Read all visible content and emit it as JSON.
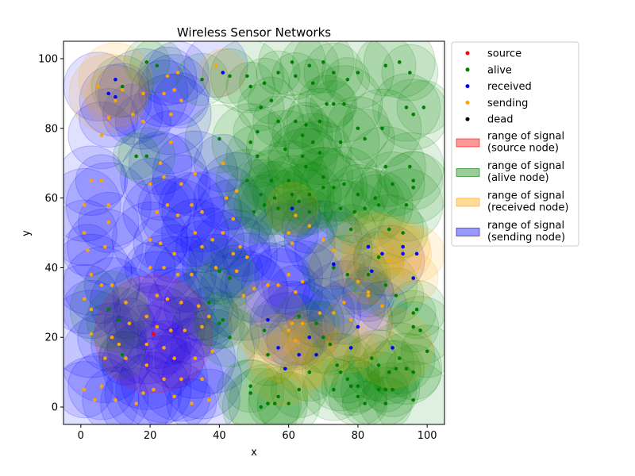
{
  "chart_data": {
    "type": "scatter",
    "title": "Wireless Sensor Networks",
    "xlabel": "x",
    "ylabel": "y",
    "xlim": [
      -5,
      105
    ],
    "ylim": [
      -5,
      105
    ],
    "xticks": [
      "0",
      "20",
      "40",
      "60",
      "80",
      "100"
    ],
    "yticks": [
      "0",
      "20",
      "40",
      "60",
      "80",
      "100"
    ],
    "grid": false,
    "legend_position": "outside-right",
    "colors": {
      "source": "#ff0000",
      "alive": "#008000",
      "received": "#0000ff",
      "sending": "#ffa500",
      "dead": "#000000",
      "range_source": "#ff0000",
      "range_alive": "#008000",
      "range_received": "#ffa500",
      "range_sending": "#0000ff"
    },
    "legend": [
      {
        "key": "source",
        "kind": "point",
        "label": "source"
      },
      {
        "key": "alive",
        "kind": "point",
        "label": "alive"
      },
      {
        "key": "received",
        "kind": "point",
        "label": "received"
      },
      {
        "key": "sending",
        "kind": "point",
        "label": "sending"
      },
      {
        "key": "dead",
        "kind": "point",
        "label": "dead"
      },
      {
        "key": "range_source",
        "kind": "patch",
        "label": "range of signal\n(source node)"
      },
      {
        "key": "range_alive",
        "kind": "patch",
        "label": "range of signal\n(alive node)"
      },
      {
        "key": "range_received",
        "kind": "patch",
        "label": "range of signal\n(received node)"
      },
      {
        "key": "range_sending",
        "kind": "patch",
        "label": "range of signal\n(sending node)"
      }
    ],
    "series": [
      {
        "name": "source",
        "points": [
          [
            21,
            21
          ]
        ]
      },
      {
        "name": "received",
        "points": [
          [
            8,
            90
          ],
          [
            10,
            94
          ],
          [
            10,
            89
          ],
          [
            41,
            96
          ],
          [
            61,
            57
          ],
          [
            73,
            41
          ],
          [
            83,
            46
          ],
          [
            84,
            39
          ],
          [
            87,
            44
          ],
          [
            93,
            46
          ],
          [
            93,
            44
          ],
          [
            97,
            44
          ],
          [
            96,
            37
          ],
          [
            54,
            25
          ],
          [
            57,
            17
          ],
          [
            59,
            11
          ],
          [
            63,
            15
          ],
          [
            66,
            20
          ],
          [
            68,
            15
          ],
          [
            78,
            17
          ],
          [
            80,
            23
          ],
          [
            90,
            17
          ]
        ]
      },
      {
        "name": "alive",
        "points": [
          [
            19,
            99
          ],
          [
            22,
            98
          ],
          [
            12,
            92
          ],
          [
            16,
            72
          ],
          [
            19,
            72
          ],
          [
            35,
            94
          ],
          [
            43,
            95
          ],
          [
            48,
            95
          ],
          [
            49,
            92
          ],
          [
            53,
            93
          ],
          [
            57,
            96
          ],
          [
            61,
            99
          ],
          [
            62,
            95
          ],
          [
            66,
            98
          ],
          [
            67,
            93
          ],
          [
            70,
            99
          ],
          [
            73,
            96
          ],
          [
            77,
            94
          ],
          [
            80,
            96
          ],
          [
            88,
            98
          ],
          [
            92,
            99
          ],
          [
            95,
            96
          ],
          [
            87,
            80
          ],
          [
            96,
            84
          ],
          [
            94,
            86
          ],
          [
            99,
            86
          ],
          [
            71,
            87
          ],
          [
            73,
            87
          ],
          [
            76,
            87
          ],
          [
            55,
            88
          ],
          [
            52,
            86
          ],
          [
            57,
            82
          ],
          [
            62,
            82
          ],
          [
            65,
            81
          ],
          [
            69,
            82
          ],
          [
            64,
            78
          ],
          [
            67,
            76
          ],
          [
            69,
            73
          ],
          [
            75,
            76
          ],
          [
            80,
            80
          ],
          [
            82,
            77
          ],
          [
            51,
            79
          ],
          [
            49,
            76
          ],
          [
            40,
            77
          ],
          [
            51,
            72
          ],
          [
            59,
            74
          ],
          [
            64,
            72
          ],
          [
            55,
            65
          ],
          [
            60,
            65
          ],
          [
            65,
            69
          ],
          [
            70,
            66
          ],
          [
            48,
            65
          ],
          [
            52,
            61
          ],
          [
            56,
            60
          ],
          [
            61,
            61
          ],
          [
            66,
            61
          ],
          [
            70,
            63
          ],
          [
            73,
            63
          ],
          [
            76,
            64
          ],
          [
            80,
            61
          ],
          [
            85,
            60
          ],
          [
            88,
            69
          ],
          [
            90,
            64
          ],
          [
            95,
            69
          ],
          [
            96,
            65
          ],
          [
            96,
            63
          ],
          [
            94,
            58
          ],
          [
            50,
            56
          ],
          [
            53,
            58
          ],
          [
            57,
            57
          ],
          [
            63,
            59
          ],
          [
            66,
            56
          ],
          [
            75,
            57
          ],
          [
            79,
            56
          ],
          [
            82,
            57
          ],
          [
            86,
            58
          ],
          [
            78,
            51
          ],
          [
            89,
            51
          ],
          [
            93,
            50
          ],
          [
            86,
            43
          ],
          [
            88,
            35
          ],
          [
            91,
            32
          ],
          [
            83,
            38
          ],
          [
            77,
            38
          ],
          [
            73,
            40
          ],
          [
            96,
            27
          ],
          [
            97,
            28
          ],
          [
            96,
            23
          ],
          [
            98,
            22
          ],
          [
            100,
            16
          ],
          [
            94,
            11
          ],
          [
            96,
            10
          ],
          [
            96,
            2
          ],
          [
            40,
            39
          ],
          [
            43,
            37
          ],
          [
            37,
            30
          ],
          [
            40,
            24
          ],
          [
            41,
            25
          ],
          [
            43,
            20
          ],
          [
            8,
            28
          ],
          [
            11,
            25
          ],
          [
            12,
            15
          ],
          [
            53,
            22
          ],
          [
            54,
            15
          ],
          [
            56,
            1
          ],
          [
            57,
            3
          ],
          [
            60,
            1
          ],
          [
            63,
            5
          ],
          [
            63,
            26
          ],
          [
            68,
            24
          ],
          [
            70,
            20
          ],
          [
            72,
            18
          ],
          [
            74,
            12
          ],
          [
            75,
            10
          ],
          [
            77,
            8
          ],
          [
            78,
            6
          ],
          [
            80,
            6
          ],
          [
            80,
            3
          ],
          [
            82,
            1
          ],
          [
            84,
            14
          ],
          [
            86,
            12
          ],
          [
            86,
            5
          ],
          [
            88,
            5
          ],
          [
            89,
            10
          ],
          [
            90,
            5
          ],
          [
            91,
            11
          ],
          [
            88,
            1
          ],
          [
            92,
            14
          ],
          [
            73,
            5
          ],
          [
            49,
            6
          ],
          [
            49,
            4
          ],
          [
            52,
            0
          ],
          [
            54,
            1
          ],
          [
            66,
            10
          ]
        ]
      },
      {
        "name": "sending",
        "points": [
          [
            5,
            92
          ],
          [
            10,
            88
          ],
          [
            12,
            91
          ],
          [
            8,
            83
          ],
          [
            6,
            78
          ],
          [
            3,
            65
          ],
          [
            6,
            65
          ],
          [
            8,
            58
          ],
          [
            1,
            58
          ],
          [
            1,
            50
          ],
          [
            8,
            53
          ],
          [
            3,
            38
          ],
          [
            7,
            46
          ],
          [
            2,
            45
          ],
          [
            1,
            31
          ],
          [
            3,
            28
          ],
          [
            6,
            35
          ],
          [
            9,
            35
          ],
          [
            13,
            30
          ],
          [
            9,
            20
          ],
          [
            11,
            18
          ],
          [
            14,
            24
          ],
          [
            3,
            21
          ],
          [
            7,
            14
          ],
          [
            13,
            14
          ],
          [
            6,
            6
          ],
          [
            4,
            2
          ],
          [
            1,
            5
          ],
          [
            10,
            2
          ],
          [
            16,
            1
          ],
          [
            18,
            4
          ],
          [
            15,
            84
          ],
          [
            18,
            82
          ],
          [
            18,
            90
          ],
          [
            24,
            90
          ],
          [
            25,
            95
          ],
          [
            27,
            91
          ],
          [
            28,
            96
          ],
          [
            29,
            88
          ],
          [
            26,
            84
          ],
          [
            26,
            76
          ],
          [
            23,
            70
          ],
          [
            20,
            64
          ],
          [
            24,
            66
          ],
          [
            29,
            64
          ],
          [
            33,
            67
          ],
          [
            22,
            56
          ],
          [
            25,
            58
          ],
          [
            28,
            55
          ],
          [
            32,
            58
          ],
          [
            35,
            56
          ],
          [
            20,
            48
          ],
          [
            23,
            47
          ],
          [
            27,
            44
          ],
          [
            33,
            50
          ],
          [
            35,
            46
          ],
          [
            20,
            40
          ],
          [
            24,
            40
          ],
          [
            28,
            38
          ],
          [
            32,
            38
          ],
          [
            22,
            32
          ],
          [
            25,
            31
          ],
          [
            29,
            30
          ],
          [
            34,
            29
          ],
          [
            19,
            26
          ],
          [
            22,
            23
          ],
          [
            26,
            22
          ],
          [
            30,
            22
          ],
          [
            35,
            23
          ],
          [
            37,
            26
          ],
          [
            19,
            18
          ],
          [
            24,
            17
          ],
          [
            27,
            14
          ],
          [
            33,
            14
          ],
          [
            38,
            16
          ],
          [
            19,
            12
          ],
          [
            24,
            8
          ],
          [
            29,
            8
          ],
          [
            35,
            8
          ],
          [
            21,
            5
          ],
          [
            27,
            3
          ],
          [
            32,
            1
          ],
          [
            37,
            2
          ],
          [
            39,
            98
          ],
          [
            41,
            70
          ],
          [
            42,
            60
          ],
          [
            45,
            62
          ],
          [
            44,
            54
          ],
          [
            46,
            46
          ],
          [
            44,
            44
          ],
          [
            48,
            43
          ],
          [
            38,
            48
          ],
          [
            41,
            50
          ],
          [
            39,
            40
          ],
          [
            45,
            39
          ],
          [
            47,
            32
          ],
          [
            50,
            34
          ],
          [
            54,
            35
          ],
          [
            57,
            35
          ],
          [
            60,
            38
          ],
          [
            62,
            33
          ],
          [
            64,
            36
          ],
          [
            61,
            47
          ],
          [
            60,
            50
          ],
          [
            62,
            55
          ],
          [
            66,
            52
          ],
          [
            70,
            48
          ],
          [
            73,
            45
          ],
          [
            60,
            22
          ],
          [
            61,
            24
          ],
          [
            62,
            19
          ],
          [
            64,
            24
          ],
          [
            80,
            36
          ],
          [
            83,
            33
          ],
          [
            83,
            32
          ],
          [
            87,
            29
          ],
          [
            89,
            42
          ],
          [
            78,
            25
          ],
          [
            76,
            30
          ],
          [
            73,
            27
          ],
          [
            69,
            27
          ]
        ]
      }
    ]
  }
}
